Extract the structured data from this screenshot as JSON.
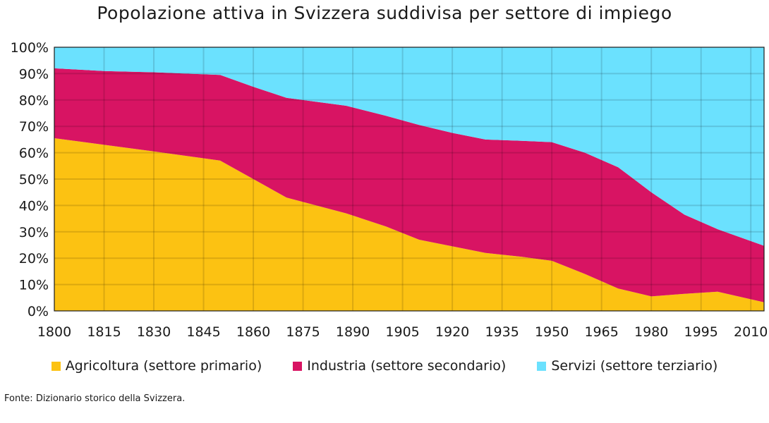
{
  "chart_data": {
    "type": "area",
    "stacked": true,
    "title": "Popolazione attiva in Svizzera suddivisa per settore di impiego",
    "x": [
      1800,
      1815,
      1830,
      1850,
      1860,
      1870,
      1888,
      1900,
      1910,
      1920,
      1930,
      1941,
      1950,
      1960,
      1970,
      1980,
      1990,
      2000,
      2014
    ],
    "series": [
      {
        "name": "Agricoltura (settore primario)",
        "color": "#fcc212",
        "values": [
          65.5,
          63,
          60.5,
          57,
          50,
          43,
          37,
          32,
          27,
          24.5,
          22,
          20.5,
          19,
          14,
          8.5,
          5.5,
          6.5,
          7.3,
          3.3
        ]
      },
      {
        "name": "Industria (settore secondario)",
        "color": "#d81463",
        "values": [
          26.5,
          28,
          30,
          32.5,
          35,
          37.8,
          40.8,
          42,
          43.5,
          43,
          43,
          44,
          45,
          46,
          46,
          39.5,
          30,
          23.7,
          21.4
        ]
      },
      {
        "name": "Servizi (settore terziario)",
        "color": "#6be1fe",
        "values": [
          8,
          9,
          9.5,
          10.5,
          15,
          19.2,
          22.2,
          26,
          29.5,
          32.5,
          35,
          35.5,
          36,
          40,
          45.5,
          55,
          63.5,
          69,
          75.3
        ]
      }
    ],
    "xticks": [
      "1800",
      "1815",
      "1830",
      "1845",
      "1860",
      "1875",
      "1890",
      "1905",
      "1920",
      "1935",
      "1950",
      "1965",
      "1980",
      "1995",
      "2010"
    ],
    "yticks": [
      "0%",
      "10%",
      "20%",
      "30%",
      "40%",
      "50%",
      "60%",
      "70%",
      "80%",
      "90%",
      "100%"
    ],
    "xlim": [
      1800,
      2014
    ],
    "ylim": [
      0,
      100
    ],
    "xlabel": "",
    "ylabel": "",
    "grid": true,
    "legend_position": "bottom",
    "source": "Fonte: Dizionario storico della Svizzera."
  }
}
